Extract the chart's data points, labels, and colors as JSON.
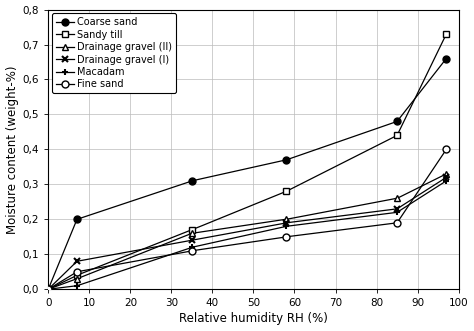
{
  "title": "",
  "xlabel": "Relative humidity RH (%)",
  "ylabel": "Moisture content (weight-%)",
  "xlim": [
    0,
    100
  ],
  "ylim": [
    0,
    0.8
  ],
  "xticks": [
    0,
    10,
    20,
    30,
    40,
    50,
    60,
    70,
    80,
    90,
    100
  ],
  "yticks": [
    0,
    0.1,
    0.2,
    0.3,
    0.4,
    0.5,
    0.6,
    0.7,
    0.8
  ],
  "series": [
    {
      "label": "Coarse sand",
      "marker": "o",
      "markersize": 5,
      "markerfacecolor": "black",
      "markeredgecolor": "black",
      "linestyle": "-",
      "color": "black",
      "x": [
        0,
        7,
        35,
        58,
        85,
        97
      ],
      "y": [
        0,
        0.2,
        0.31,
        0.37,
        0.48,
        0.66
      ]
    },
    {
      "label": "Sandy till",
      "marker": "s",
      "markersize": 5,
      "markerfacecolor": "white",
      "markeredgecolor": "black",
      "linestyle": "-",
      "color": "black",
      "x": [
        0,
        7,
        35,
        58,
        85,
        97
      ],
      "y": [
        0,
        0.04,
        0.17,
        0.28,
        0.44,
        0.73
      ]
    },
    {
      "label": "Drainage gravel (II)",
      "marker": "^",
      "markersize": 5,
      "markerfacecolor": "white",
      "markeredgecolor": "black",
      "linestyle": "-",
      "color": "black",
      "x": [
        0,
        7,
        35,
        58,
        85,
        97
      ],
      "y": [
        0,
        0.03,
        0.16,
        0.2,
        0.26,
        0.33
      ]
    },
    {
      "label": "Drainage gravel (I)",
      "marker": "x",
      "markersize": 5,
      "markerfacecolor": "black",
      "markeredgecolor": "black",
      "linestyle": "-",
      "color": "black",
      "x": [
        0,
        7,
        35,
        58,
        85,
        97
      ],
      "y": [
        0,
        0.08,
        0.14,
        0.19,
        0.23,
        0.32
      ]
    },
    {
      "label": "Macadam",
      "marker": "P",
      "markersize": 5,
      "markerfacecolor": "black",
      "markeredgecolor": "black",
      "linestyle": "-",
      "color": "black",
      "x": [
        0,
        7,
        35,
        58,
        85,
        97
      ],
      "y": [
        0,
        0.01,
        0.12,
        0.18,
        0.22,
        0.31
      ]
    },
    {
      "label": "Fine sand",
      "marker": "o",
      "markersize": 5,
      "markerfacecolor": "white",
      "markeredgecolor": "black",
      "linestyle": "-",
      "color": "black",
      "x": [
        0,
        7,
        35,
        58,
        85,
        97
      ],
      "y": [
        0,
        0.05,
        0.11,
        0.15,
        0.19,
        0.4
      ]
    }
  ],
  "background_color": "#ffffff",
  "grid_color": "#bbbbbb",
  "legend_markers": [
    "o",
    "s",
    "^",
    "x",
    "+",
    "o"
  ],
  "legend_mfc": [
    "black",
    "white",
    "white",
    "black",
    "black",
    "white"
  ]
}
